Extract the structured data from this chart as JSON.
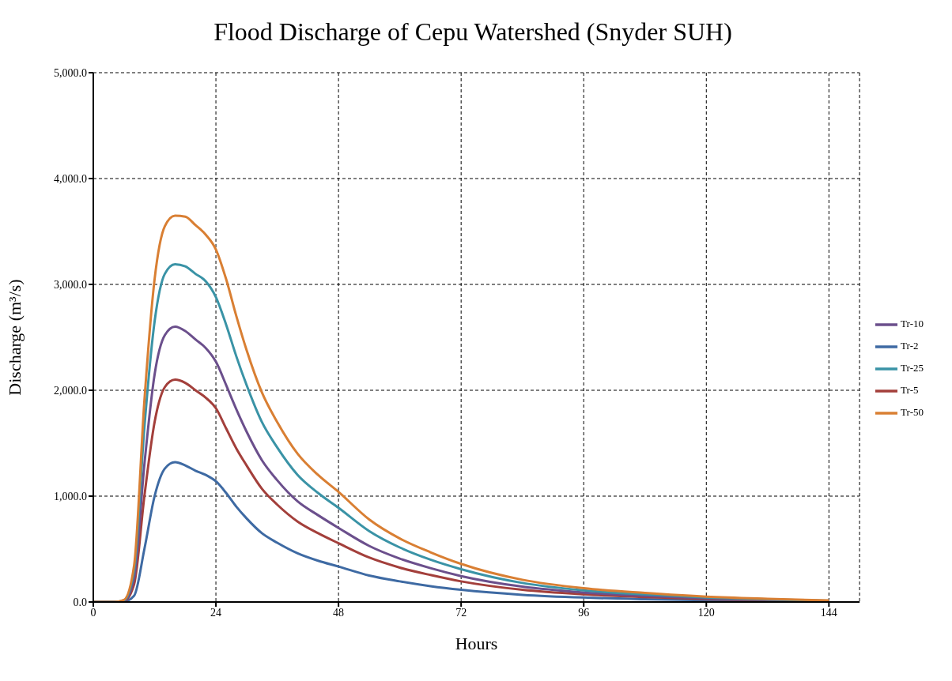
{
  "chart_data": {
    "type": "line",
    "title": "Flood Discharge of Cepu Watershed (Snyder SUH)",
    "xlabel": "Hours",
    "ylabel": "Discharge  (m³/s)",
    "x": [
      0,
      4,
      6,
      8,
      10,
      12,
      14,
      16,
      18,
      20,
      22,
      24,
      26,
      28,
      30,
      33,
      36,
      40,
      44,
      48,
      54,
      60,
      66,
      72,
      84,
      96,
      108,
      120,
      132,
      144
    ],
    "series": [
      {
        "name": "Tr-2",
        "color": "#3e6aa3",
        "values": [
          0,
          0,
          3,
          60,
          500,
          1000,
          1260,
          1320,
          1290,
          1240,
          1200,
          1140,
          1030,
          900,
          790,
          650,
          560,
          460,
          390,
          335,
          250,
          195,
          150,
          115,
          68,
          42,
          27,
          16,
          10,
          5
        ]
      },
      {
        "name": "Tr-5",
        "color": "#a33f3b",
        "values": [
          0,
          0,
          8,
          170,
          1000,
          1700,
          2030,
          2100,
          2070,
          2000,
          1930,
          1830,
          1640,
          1450,
          1290,
          1070,
          920,
          760,
          650,
          555,
          420,
          325,
          255,
          195,
          115,
          72,
          46,
          28,
          16,
          8
        ]
      },
      {
        "name": "Tr-10",
        "color": "#6b4f8c",
        "values": [
          0,
          0,
          10,
          230,
          1300,
          2150,
          2520,
          2600,
          2560,
          2480,
          2400,
          2270,
          2050,
          1820,
          1610,
          1340,
          1150,
          950,
          820,
          700,
          530,
          410,
          320,
          245,
          145,
          90,
          58,
          35,
          20,
          10
        ]
      },
      {
        "name": "Tr-25",
        "color": "#3a93a6",
        "values": [
          0,
          0,
          15,
          300,
          1650,
          2650,
          3100,
          3190,
          3170,
          3100,
          3030,
          2880,
          2620,
          2320,
          2050,
          1700,
          1460,
          1200,
          1030,
          890,
          670,
          515,
          400,
          310,
          180,
          110,
          72,
          43,
          25,
          12
        ]
      },
      {
        "name": "Tr-50",
        "color": "#d97f33",
        "values": [
          0,
          0,
          20,
          350,
          1900,
          3050,
          3550,
          3650,
          3640,
          3560,
          3470,
          3330,
          3050,
          2700,
          2380,
          1980,
          1700,
          1400,
          1200,
          1040,
          780,
          600,
          470,
          360,
          210,
          130,
          85,
          50,
          30,
          15
        ]
      }
    ],
    "xlim": [
      0,
      150
    ],
    "xticks": [
      0,
      24,
      48,
      72,
      96,
      120,
      144
    ],
    "ylim": [
      0,
      5000
    ],
    "yticks": [
      {
        "value": 0,
        "label": "0.0"
      },
      {
        "value": 1000,
        "label": "1,000.0"
      },
      {
        "value": 2000,
        "label": "2,000.0"
      },
      {
        "value": 3000,
        "label": "3,000.0"
      },
      {
        "value": 4000,
        "label": "4,000.0"
      },
      {
        "value": 5000,
        "label": "5,000.0"
      }
    ],
    "grid": true,
    "legend": "right",
    "marker": "none",
    "line_style": "solid"
  }
}
